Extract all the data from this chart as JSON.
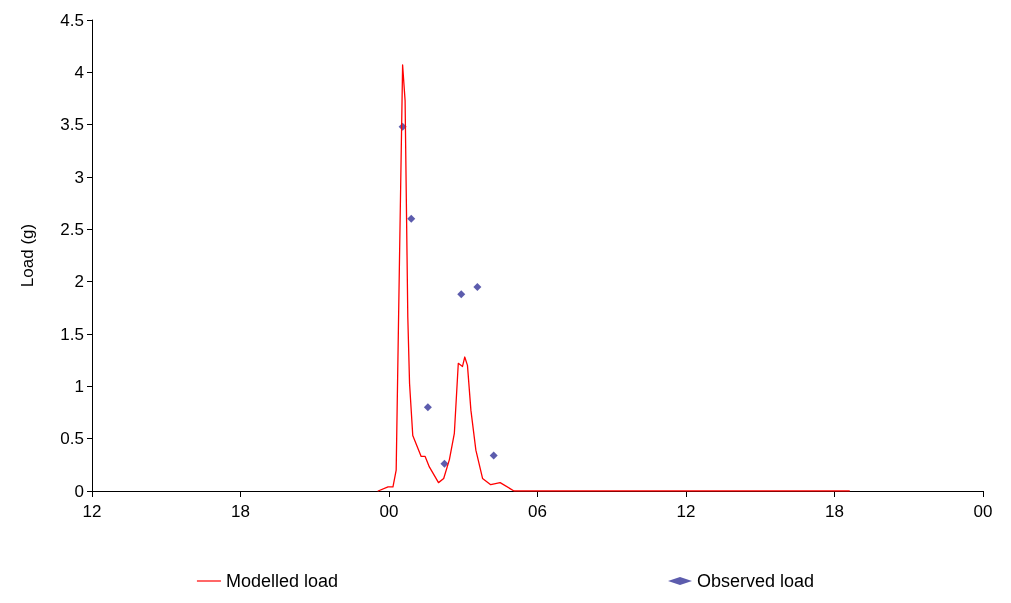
{
  "chart_data": {
    "type": "line",
    "ylabel": "Load (g)",
    "ylim": [
      0,
      4.5
    ],
    "yticks": [
      0,
      0.5,
      1,
      1.5,
      2,
      2.5,
      3,
      3.5,
      4,
      4.5
    ],
    "xlim": [
      12,
      48
    ],
    "xticks": [
      {
        "value": 12,
        "label": "12"
      },
      {
        "value": 18,
        "label": "18"
      },
      {
        "value": 24,
        "label": "00"
      },
      {
        "value": 30,
        "label": "06"
      },
      {
        "value": 36,
        "label": "12"
      },
      {
        "value": 42,
        "label": "18"
      },
      {
        "value": 48,
        "label": "00"
      }
    ],
    "grid": false,
    "legend": "bottom",
    "series": [
      {
        "name": "Modelled load",
        "color": "#ff0000",
        "line_style": "solid",
        "marker": "none",
        "x": [
          23.56,
          23.96,
          24.16,
          24.29,
          24.43,
          24.55,
          24.65,
          24.76,
          24.83,
          24.96,
          25.3,
          25.46,
          25.63,
          26.0,
          26.21,
          26.44,
          26.64,
          26.8,
          26.97,
          27.06,
          27.17,
          27.31,
          27.51,
          27.78,
          28.11,
          28.49,
          29.05,
          42.6
        ],
        "values": [
          0,
          0.04,
          0.04,
          0.2,
          2.3,
          4.07,
          3.73,
          1.66,
          1.03,
          0.53,
          0.33,
          0.33,
          0.23,
          0.08,
          0.12,
          0.3,
          0.55,
          1.22,
          1.19,
          1.28,
          1.2,
          0.77,
          0.39,
          0.12,
          0.06,
          0.08,
          0,
          0
        ]
      },
      {
        "name": "Observed load",
        "type": "scatter",
        "color": "#333399",
        "marker": "diamond",
        "x": [
          24.55,
          24.9,
          25.57,
          26.24,
          26.92,
          27.57,
          28.23
        ],
        "values": [
          3.48,
          2.6,
          0.8,
          0.26,
          1.88,
          1.95,
          0.34
        ]
      }
    ]
  }
}
